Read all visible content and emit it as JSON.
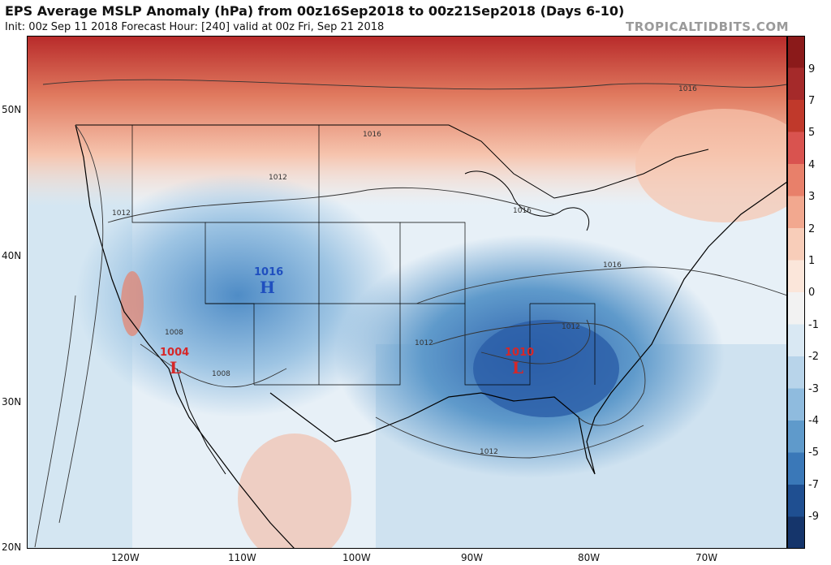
{
  "header": {
    "title": "EPS Average MSLP Anomaly (hPa) from 00z16Sep2018 to 00z21Sep2018 (Days 6-10)",
    "subtitle": "Init: 00z Sep 11 2018   Forecast Hour: [240]   valid at 00z Fri, Sep 21 2018",
    "brand": "TROPICALTIDBITS.COM"
  },
  "axes": {
    "longitudes": [
      "120W",
      "110W",
      "100W",
      "90W",
      "80W",
      "70W"
    ],
    "latitudes": [
      "50N",
      "40N",
      "30N",
      "20N"
    ]
  },
  "colorbar": {
    "labels": [
      "9",
      "7",
      "5",
      "4",
      "3",
      "2",
      "1",
      "0",
      "-1",
      "-2",
      "-3",
      "-4",
      "-5",
      "-7",
      "-9"
    ],
    "colors": [
      "#8b1a1a",
      "#a52a2a",
      "#c0392b",
      "#d9534f",
      "#e8806a",
      "#f2a88f",
      "#f8cdb9",
      "#fbe6da",
      "#f2f2f2",
      "#d9e8f3",
      "#b8d4ea",
      "#8fbbde",
      "#5f9acb",
      "#3a78b8",
      "#1f4f91",
      "#15356b"
    ]
  },
  "systems": [
    {
      "type": "H",
      "value": "1016",
      "color": "#1f4fbf"
    },
    {
      "type": "L",
      "value": "1004",
      "color": "#d62728"
    },
    {
      "type": "L",
      "value": "1010",
      "color": "#d62728"
    }
  ],
  "isobars": [
    "1016",
    "1012",
    "1012",
    "1016",
    "1016",
    "1016",
    "1008",
    "1008",
    "1012",
    "1012",
    "1012",
    "1016"
  ]
}
